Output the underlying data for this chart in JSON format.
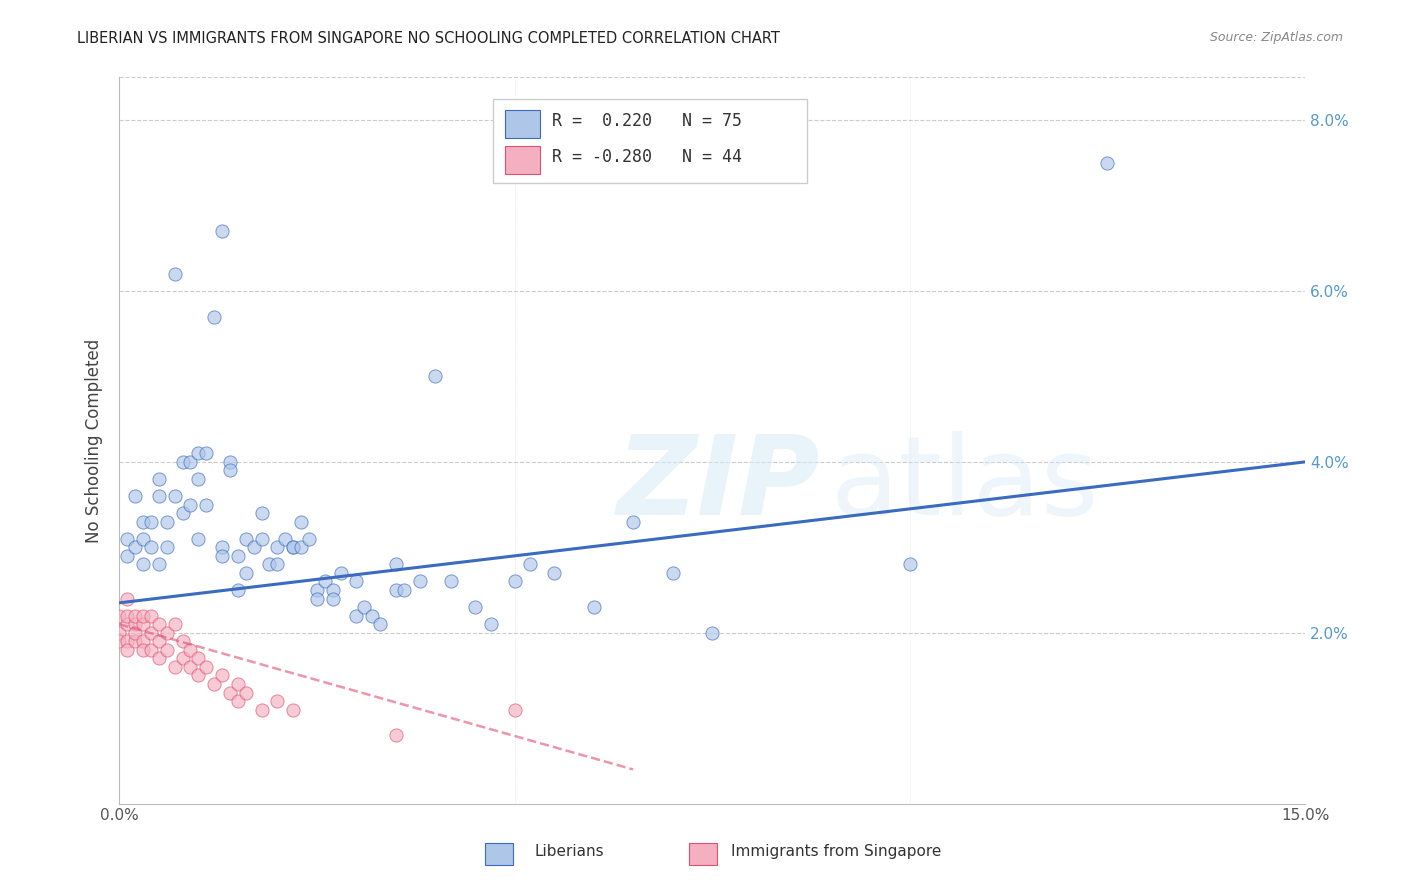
{
  "title": "LIBERIAN VS IMMIGRANTS FROM SINGAPORE NO SCHOOLING COMPLETED CORRELATION CHART",
  "source": "Source: ZipAtlas.com",
  "ylabel": "No Schooling Completed",
  "legend_blue_r": "0.220",
  "legend_blue_n": "75",
  "legend_pink_r": "-0.280",
  "legend_pink_n": "44",
  "blue_color": "#aec6e8",
  "blue_line_color": "#3a6bbf",
  "pink_color": "#f4afc0",
  "pink_line_color": "#e05070",
  "blue_points": [
    [
      0.001,
      0.031
    ],
    [
      0.001,
      0.029
    ],
    [
      0.002,
      0.036
    ],
    [
      0.002,
      0.03
    ],
    [
      0.003,
      0.033
    ],
    [
      0.003,
      0.028
    ],
    [
      0.003,
      0.031
    ],
    [
      0.004,
      0.033
    ],
    [
      0.004,
      0.03
    ],
    [
      0.005,
      0.038
    ],
    [
      0.005,
      0.036
    ],
    [
      0.005,
      0.028
    ],
    [
      0.006,
      0.03
    ],
    [
      0.006,
      0.033
    ],
    [
      0.007,
      0.062
    ],
    [
      0.007,
      0.036
    ],
    [
      0.008,
      0.034
    ],
    [
      0.008,
      0.04
    ],
    [
      0.009,
      0.04
    ],
    [
      0.009,
      0.035
    ],
    [
      0.01,
      0.041
    ],
    [
      0.01,
      0.038
    ],
    [
      0.01,
      0.031
    ],
    [
      0.011,
      0.041
    ],
    [
      0.011,
      0.035
    ],
    [
      0.012,
      0.057
    ],
    [
      0.013,
      0.067
    ],
    [
      0.013,
      0.03
    ],
    [
      0.013,
      0.029
    ],
    [
      0.014,
      0.04
    ],
    [
      0.014,
      0.039
    ],
    [
      0.015,
      0.029
    ],
    [
      0.015,
      0.025
    ],
    [
      0.016,
      0.031
    ],
    [
      0.016,
      0.027
    ],
    [
      0.017,
      0.03
    ],
    [
      0.018,
      0.034
    ],
    [
      0.018,
      0.031
    ],
    [
      0.019,
      0.028
    ],
    [
      0.02,
      0.03
    ],
    [
      0.02,
      0.028
    ],
    [
      0.021,
      0.031
    ],
    [
      0.022,
      0.03
    ],
    [
      0.022,
      0.03
    ],
    [
      0.023,
      0.033
    ],
    [
      0.023,
      0.03
    ],
    [
      0.024,
      0.031
    ],
    [
      0.025,
      0.025
    ],
    [
      0.025,
      0.024
    ],
    [
      0.026,
      0.026
    ],
    [
      0.027,
      0.025
    ],
    [
      0.027,
      0.024
    ],
    [
      0.028,
      0.027
    ],
    [
      0.03,
      0.026
    ],
    [
      0.03,
      0.022
    ],
    [
      0.031,
      0.023
    ],
    [
      0.032,
      0.022
    ],
    [
      0.033,
      0.021
    ],
    [
      0.035,
      0.028
    ],
    [
      0.035,
      0.025
    ],
    [
      0.036,
      0.025
    ],
    [
      0.038,
      0.026
    ],
    [
      0.04,
      0.05
    ],
    [
      0.042,
      0.026
    ],
    [
      0.045,
      0.023
    ],
    [
      0.047,
      0.021
    ],
    [
      0.05,
      0.026
    ],
    [
      0.052,
      0.028
    ],
    [
      0.055,
      0.027
    ],
    [
      0.06,
      0.023
    ],
    [
      0.065,
      0.033
    ],
    [
      0.07,
      0.027
    ],
    [
      0.075,
      0.02
    ],
    [
      0.1,
      0.028
    ],
    [
      0.125,
      0.075
    ]
  ],
  "pink_points": [
    [
      0.0,
      0.02
    ],
    [
      0.0,
      0.019
    ],
    [
      0.0,
      0.022
    ],
    [
      0.001,
      0.021
    ],
    [
      0.001,
      0.019
    ],
    [
      0.001,
      0.022
    ],
    [
      0.001,
      0.018
    ],
    [
      0.001,
      0.024
    ],
    [
      0.002,
      0.021
    ],
    [
      0.002,
      0.019
    ],
    [
      0.002,
      0.022
    ],
    [
      0.002,
      0.02
    ],
    [
      0.003,
      0.021
    ],
    [
      0.003,
      0.019
    ],
    [
      0.003,
      0.022
    ],
    [
      0.003,
      0.018
    ],
    [
      0.004,
      0.02
    ],
    [
      0.004,
      0.018
    ],
    [
      0.004,
      0.022
    ],
    [
      0.005,
      0.019
    ],
    [
      0.005,
      0.021
    ],
    [
      0.005,
      0.017
    ],
    [
      0.006,
      0.02
    ],
    [
      0.006,
      0.018
    ],
    [
      0.007,
      0.021
    ],
    [
      0.007,
      0.016
    ],
    [
      0.008,
      0.019
    ],
    [
      0.008,
      0.017
    ],
    [
      0.009,
      0.018
    ],
    [
      0.009,
      0.016
    ],
    [
      0.01,
      0.017
    ],
    [
      0.01,
      0.015
    ],
    [
      0.011,
      0.016
    ],
    [
      0.012,
      0.014
    ],
    [
      0.013,
      0.015
    ],
    [
      0.014,
      0.013
    ],
    [
      0.015,
      0.014
    ],
    [
      0.015,
      0.012
    ],
    [
      0.016,
      0.013
    ],
    [
      0.018,
      0.011
    ],
    [
      0.02,
      0.012
    ],
    [
      0.022,
      0.011
    ],
    [
      0.05,
      0.011
    ],
    [
      0.035,
      0.008
    ]
  ],
  "xlim": [
    0.0,
    0.15
  ],
  "ylim": [
    0.0,
    0.085
  ],
  "ytick_vals": [
    0.02,
    0.04,
    0.06,
    0.08
  ],
  "ytick_labels": [
    "2.0%",
    "4.0%",
    "6.0%",
    "8.0%"
  ],
  "xtick_vals": [
    0.0,
    0.05,
    0.1,
    0.15
  ],
  "xtick_labels": [
    "0.0%",
    "",
    "",
    "15.0%"
  ],
  "blue_trend_x": [
    0.0,
    0.15
  ],
  "blue_trend_y": [
    0.0235,
    0.04
  ],
  "pink_trend_x": [
    0.0,
    0.065
  ],
  "pink_trend_y": [
    0.021,
    0.004
  ]
}
